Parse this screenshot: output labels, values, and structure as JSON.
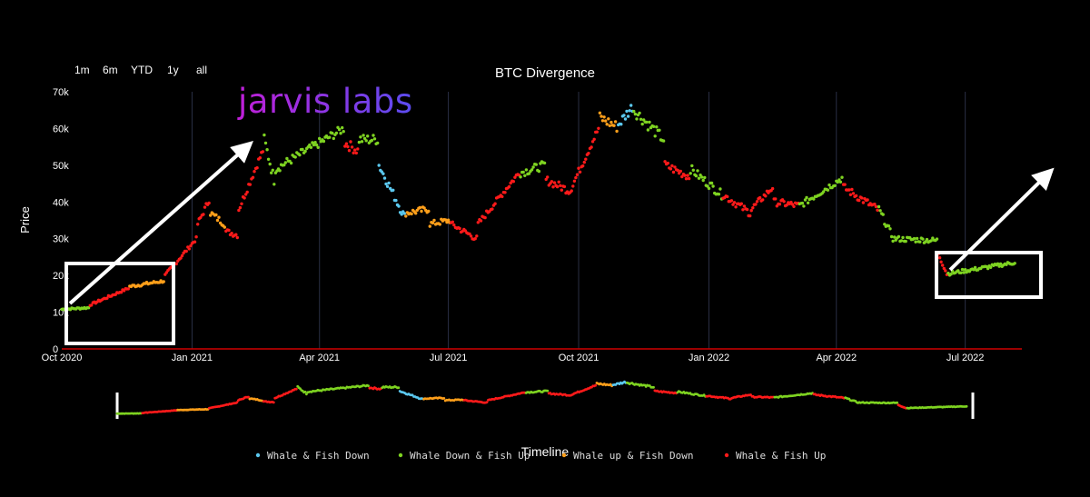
{
  "range_buttons": [
    "1m",
    "6m",
    "YTD",
    "1y",
    "all"
  ],
  "watermark": "jarvis labs",
  "colors": {
    "background": "#000000",
    "grid": "#2a2f45",
    "baseline": "#d00000",
    "whale_fish_down": "#5bc8ef",
    "whale_down_fish_up": "#7ed321",
    "whale_up_fish_down": "#ff9f1a",
    "whale_fish_up": "#ff1a1a",
    "watermark_start": "#c01fd8",
    "watermark_end": "#5b4cf0"
  },
  "chart_data": {
    "type": "scatter",
    "title": "BTC Divergence",
    "xlabel": "Timeline",
    "ylabel": "Price",
    "xlim": [
      "2020-10-01",
      "2022-08-10"
    ],
    "ylim": [
      0,
      70000
    ],
    "x_ticks": [
      "2020-10-01",
      "2021-01-01",
      "2021-04-01",
      "2021-07-01",
      "2021-10-01",
      "2022-01-01",
      "2022-04-01",
      "2022-07-01"
    ],
    "x_tick_labels": [
      "Oct 2020",
      "Jan 2021",
      "Apr 2021",
      "Jul 2021",
      "Oct 2021",
      "Jan 2022",
      "Apr 2022",
      "Jul 2022"
    ],
    "y_ticks": [
      0,
      10000,
      20000,
      30000,
      40000,
      50000,
      60000,
      70000
    ],
    "y_tick_labels": [
      "0",
      "10k",
      "20k",
      "30k",
      "40k",
      "50k",
      "60k",
      "70k"
    ],
    "grid": "vertical",
    "legend_position": "bottom",
    "series": [
      {
        "name": "Whale & Fish Down",
        "key": "whale_fish_down"
      },
      {
        "name": "Whale Down & Fish Up",
        "key": "whale_down_fish_up"
      },
      {
        "name": "Whale up & Fish Down",
        "key": "whale_up_fish_down"
      },
      {
        "name": "Whale & Fish Up",
        "key": "whale_fish_up"
      }
    ],
    "segments": [
      {
        "start": "2020-10-01",
        "end": "2020-10-20",
        "y0": 10800,
        "y1": 11200,
        "state": 1
      },
      {
        "start": "2020-10-21",
        "end": "2020-11-17",
        "y0": 12000,
        "y1": 16500,
        "state": 3
      },
      {
        "start": "2020-11-18",
        "end": "2020-12-12",
        "y0": 17000,
        "y1": 18500,
        "state": 2
      },
      {
        "start": "2020-12-13",
        "end": "2021-01-04",
        "y0": 20000,
        "y1": 30000,
        "state": 3
      },
      {
        "start": "2021-01-05",
        "end": "2021-01-13",
        "y0": 34000,
        "y1": 40500,
        "state": 3
      },
      {
        "start": "2021-01-14",
        "end": "2021-01-24",
        "y0": 37000,
        "y1": 34000,
        "state": 2
      },
      {
        "start": "2021-01-25",
        "end": "2021-02-02",
        "y0": 32000,
        "y1": 31000,
        "state": 3
      },
      {
        "start": "2021-02-03",
        "end": "2021-02-20",
        "y0": 38000,
        "y1": 54000,
        "state": 3
      },
      {
        "start": "2021-02-21",
        "end": "2021-02-28",
        "y0": 57000,
        "y1": 46000,
        "state": 1
      },
      {
        "start": "2021-03-01",
        "end": "2021-04-18",
        "y0": 49000,
        "y1": 60000,
        "state": 1
      },
      {
        "start": "2021-04-19",
        "end": "2021-04-28",
        "y0": 56000,
        "y1": 54000,
        "state": 3
      },
      {
        "start": "2021-04-29",
        "end": "2021-05-12",
        "y0": 57000,
        "y1": 57000,
        "state": 1
      },
      {
        "start": "2021-05-13",
        "end": "2021-05-31",
        "y0": 50000,
        "y1": 36000,
        "state": 0
      },
      {
        "start": "2021-06-01",
        "end": "2021-06-17",
        "y0": 37000,
        "y1": 38000,
        "state": 2
      },
      {
        "start": "2021-06-18",
        "end": "2021-07-02",
        "y0": 34000,
        "y1": 35000,
        "state": 2
      },
      {
        "start": "2021-07-03",
        "end": "2021-07-21",
        "y0": 34000,
        "y1": 30000,
        "state": 3
      },
      {
        "start": "2021-07-22",
        "end": "2021-08-20",
        "y0": 34000,
        "y1": 48000,
        "state": 3
      },
      {
        "start": "2021-08-21",
        "end": "2021-09-07",
        "y0": 48000,
        "y1": 50000,
        "state": 1
      },
      {
        "start": "2021-09-08",
        "end": "2021-09-25",
        "y0": 46000,
        "y1": 43000,
        "state": 3
      },
      {
        "start": "2021-09-26",
        "end": "2021-10-15",
        "y0": 44000,
        "y1": 60000,
        "state": 3
      },
      {
        "start": "2021-10-16",
        "end": "2021-10-28",
        "y0": 63000,
        "y1": 60500,
        "state": 2
      },
      {
        "start": "2021-10-29",
        "end": "2021-11-08",
        "y0": 61000,
        "y1": 66000,
        "state": 0
      },
      {
        "start": "2021-11-09",
        "end": "2021-11-30",
        "y0": 65000,
        "y1": 57000,
        "state": 1
      },
      {
        "start": "2021-12-01",
        "end": "2021-12-18",
        "y0": 50000,
        "y1": 47000,
        "state": 3
      },
      {
        "start": "2021-12-19",
        "end": "2022-01-10",
        "y0": 49000,
        "y1": 42000,
        "state": 1
      },
      {
        "start": "2022-01-11",
        "end": "2022-01-30",
        "y0": 42000,
        "y1": 37000,
        "state": 3
      },
      {
        "start": "2022-01-31",
        "end": "2022-02-15",
        "y0": 38000,
        "y1": 44000,
        "state": 3
      },
      {
        "start": "2022-02-16",
        "end": "2022-03-05",
        "y0": 40000,
        "y1": 39000,
        "state": 3
      },
      {
        "start": "2022-03-06",
        "end": "2022-04-05",
        "y0": 39000,
        "y1": 46500,
        "state": 1
      },
      {
        "start": "2022-04-06",
        "end": "2022-04-30",
        "y0": 44000,
        "y1": 38000,
        "state": 3
      },
      {
        "start": "2022-05-01",
        "end": "2022-05-10",
        "y0": 38000,
        "y1": 31000,
        "state": 1
      },
      {
        "start": "2022-05-11",
        "end": "2022-06-11",
        "y0": 30000,
        "y1": 29500,
        "state": 1
      },
      {
        "start": "2022-06-12",
        "end": "2022-06-18",
        "y0": 26000,
        "y1": 20500,
        "state": 3
      },
      {
        "start": "2022-06-19",
        "end": "2022-08-05",
        "y0": 20500,
        "y1": 23500,
        "state": 1
      }
    ]
  }
}
